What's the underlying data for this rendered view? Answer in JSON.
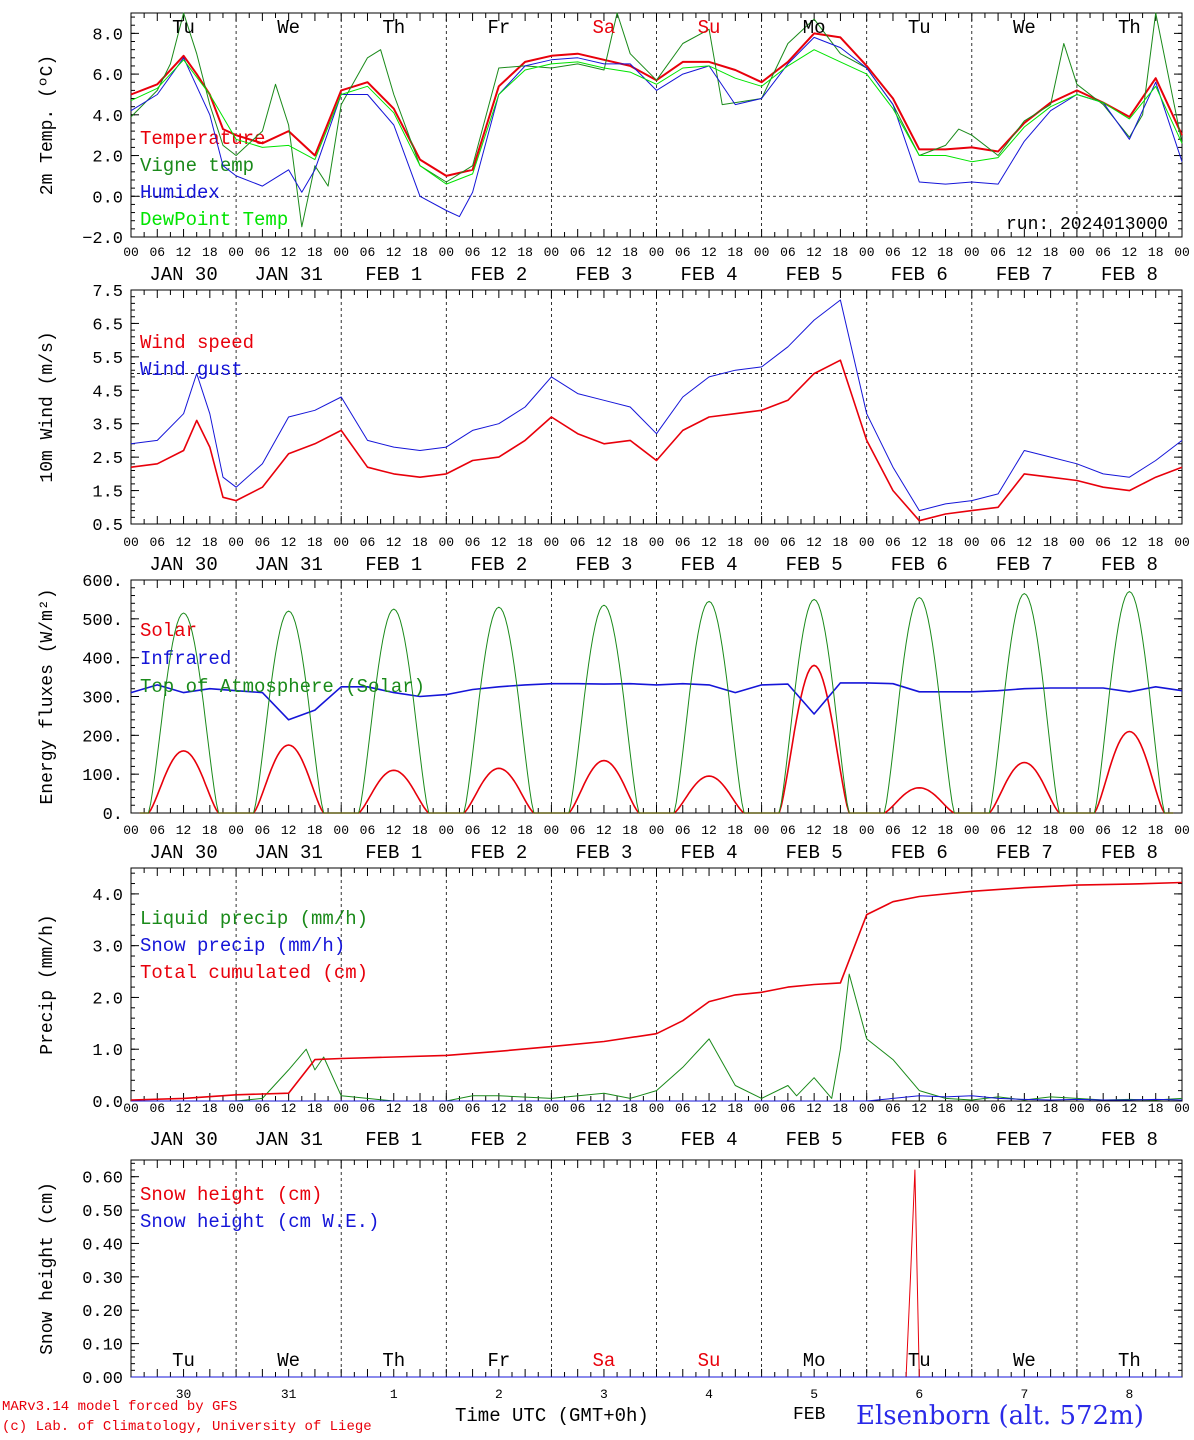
{
  "footer": {
    "credit_line1": "MARv3.14 model forced by GFS",
    "credit_line2": "(c) Lab. of Climatology, University of Liege",
    "x_axis_title": "Time UTC (GMT+0h)",
    "month_label": "FEB",
    "station": "Elsenborn (alt. 572m)"
  },
  "run_label": "run: 2024013000",
  "weekday_labels": [
    "Tu",
    "We",
    "Th",
    "Fr",
    "Sa",
    "Su",
    "Mo",
    "Tu",
    "We",
    "Th"
  ],
  "weekend_color": "#e8000b",
  "weekend_indices": [
    4,
    5
  ],
  "date_labels": [
    "JAN 30",
    "JAN 31",
    "FEB  1",
    "FEB  2",
    "FEB  3",
    "FEB  4",
    "FEB  5",
    "FEB  6",
    "FEB  7",
    "FEB  8"
  ],
  "hour_ticks": [
    "00",
    "06",
    "12",
    "18"
  ],
  "final_hour_tick": "00",
  "bottom_day_numbers": [
    "30",
    "31",
    "1",
    "2",
    "3",
    "4",
    "5",
    "6",
    "7",
    "8"
  ],
  "chart_data": [
    {
      "type": "line",
      "ylabel": "2m Temp. (ºC)",
      "ylim": [
        -2,
        9
      ],
      "yticks": [
        -2,
        0,
        2,
        4,
        6,
        8
      ],
      "ytick_labels": [
        "−2.0",
        "0.0",
        "2.0",
        "4.0",
        "6.0",
        "8.0"
      ],
      "reference_line": 0,
      "x_unit": "hours since JAN 30 00 UTC",
      "xlim": [
        0,
        240
      ],
      "series": [
        {
          "name": "Temperature",
          "color": "#e8000b",
          "width": 2,
          "x": [
            0,
            6,
            12,
            15,
            18,
            21,
            24,
            30,
            36,
            42,
            48,
            54,
            60,
            66,
            72,
            78,
            84,
            90,
            96,
            102,
            108,
            114,
            120,
            126,
            132,
            138,
            144,
            150,
            156,
            162,
            168,
            174,
            180,
            186,
            192,
            198,
            204,
            210,
            216,
            222,
            228,
            234,
            240
          ],
          "y": [
            5.0,
            5.5,
            6.9,
            6.0,
            5.0,
            3.3,
            3.0,
            2.6,
            3.2,
            2.0,
            5.2,
            5.6,
            4.3,
            1.8,
            1.0,
            1.3,
            5.4,
            6.6,
            6.9,
            7.0,
            6.7,
            6.4,
            5.7,
            6.6,
            6.6,
            6.2,
            5.6,
            6.6,
            8.0,
            7.8,
            6.4,
            4.8,
            2.3,
            2.3,
            2.4,
            2.2,
            3.6,
            4.6,
            5.2,
            4.6,
            3.9,
            5.8,
            3.0
          ]
        },
        {
          "name": "Vigne temp",
          "color": "#1a8a1a",
          "width": 1,
          "x": [
            0,
            6,
            9,
            12,
            15,
            18,
            21,
            24,
            30,
            33,
            36,
            39,
            42,
            45,
            48,
            54,
            57,
            60,
            66,
            72,
            78,
            84,
            90,
            96,
            102,
            108,
            111,
            114,
            120,
            126,
            132,
            135,
            138,
            144,
            150,
            156,
            162,
            168,
            174,
            180,
            186,
            189,
            192,
            198,
            204,
            210,
            213,
            216,
            222,
            228,
            231,
            234,
            240
          ],
          "y": [
            3.9,
            5.2,
            6.5,
            9.0,
            7.0,
            4.5,
            2.5,
            2.0,
            3.2,
            5.5,
            3.5,
            -1.5,
            1.5,
            0.5,
            4.5,
            6.8,
            7.2,
            5.0,
            1.5,
            0.7,
            1.5,
            6.3,
            6.4,
            6.3,
            6.5,
            6.2,
            9.0,
            7.0,
            5.7,
            7.5,
            8.2,
            4.5,
            4.6,
            4.8,
            7.5,
            8.7,
            7.0,
            6.3,
            4.5,
            2.0,
            2.5,
            3.3,
            3.0,
            2.0,
            3.7,
            4.5,
            7.5,
            5.5,
            4.5,
            2.9,
            4.0,
            9.0,
            2.6
          ]
        },
        {
          "name": "Humidex",
          "color": "#1515d8",
          "width": 1,
          "x": [
            0,
            6,
            12,
            18,
            21,
            24,
            30,
            36,
            39,
            42,
            48,
            54,
            60,
            66,
            72,
            75,
            78,
            84,
            90,
            96,
            102,
            108,
            114,
            120,
            126,
            132,
            138,
            144,
            150,
            156,
            162,
            168,
            174,
            180,
            186,
            192,
            198,
            204,
            210,
            216,
            222,
            228,
            234,
            240
          ],
          "y": [
            4.2,
            5.0,
            6.8,
            4.0,
            1.5,
            1.0,
            0.5,
            1.3,
            0.2,
            1.3,
            5.0,
            5.0,
            3.5,
            0.0,
            -0.7,
            -1.0,
            0.2,
            5.0,
            6.4,
            6.7,
            6.8,
            6.5,
            6.5,
            5.2,
            6.0,
            6.4,
            4.5,
            4.8,
            6.5,
            7.8,
            7.3,
            6.3,
            4.5,
            0.7,
            0.6,
            0.7,
            0.6,
            2.7,
            4.2,
            5.0,
            4.6,
            2.8,
            5.6,
            1.7
          ]
        },
        {
          "name": "DewPoint Temp",
          "color": "#00e400",
          "width": 1,
          "x": [
            0,
            6,
            12,
            18,
            24,
            30,
            36,
            42,
            48,
            54,
            60,
            66,
            72,
            78,
            84,
            90,
            96,
            102,
            108,
            114,
            120,
            126,
            132,
            138,
            144,
            150,
            156,
            162,
            168,
            174,
            180,
            186,
            192,
            198,
            204,
            210,
            216,
            222,
            228,
            234,
            240
          ],
          "y": [
            4.7,
            5.3,
            6.7,
            5.0,
            2.8,
            2.4,
            2.5,
            1.8,
            5.0,
            5.4,
            4.1,
            1.5,
            0.6,
            1.1,
            5.0,
            6.2,
            6.5,
            6.6,
            6.3,
            6.1,
            5.5,
            6.3,
            6.4,
            5.8,
            5.4,
            6.4,
            7.2,
            6.6,
            6.0,
            4.3,
            2.0,
            2.0,
            1.7,
            1.9,
            3.4,
            4.4,
            5.0,
            4.6,
            3.8,
            5.4,
            2.6
          ]
        }
      ]
    },
    {
      "type": "line",
      "ylabel": "10m Wind (m/s)",
      "ylim": [
        0.5,
        7.5
      ],
      "yticks": [
        0.5,
        1.5,
        2.5,
        3.5,
        4.5,
        5.5,
        6.5,
        7.5
      ],
      "ytick_labels": [
        "0.5",
        "1.5",
        "2.5",
        "3.5",
        "4.5",
        "5.5",
        "6.5",
        "7.5"
      ],
      "reference_line": 5,
      "xlim": [
        0,
        240
      ],
      "series": [
        {
          "name": "Wind speed",
          "color": "#e8000b",
          "width": 1.6,
          "x": [
            0,
            6,
            12,
            15,
            18,
            21,
            24,
            30,
            36,
            42,
            48,
            54,
            60,
            66,
            72,
            78,
            84,
            90,
            96,
            102,
            108,
            114,
            120,
            126,
            132,
            138,
            144,
            150,
            156,
            162,
            168,
            174,
            180,
            186,
            192,
            198,
            204,
            210,
            216,
            222,
            228,
            234,
            240
          ],
          "y": [
            2.2,
            2.3,
            2.7,
            3.6,
            2.8,
            1.3,
            1.2,
            1.6,
            2.6,
            2.9,
            3.3,
            2.2,
            2.0,
            1.9,
            2.0,
            2.4,
            2.5,
            3.0,
            3.7,
            3.2,
            2.9,
            3.0,
            2.4,
            3.3,
            3.7,
            3.8,
            3.9,
            4.2,
            5.0,
            5.4,
            3.0,
            1.5,
            0.6,
            0.8,
            0.9,
            1.0,
            2.0,
            1.9,
            1.8,
            1.6,
            1.5,
            1.9,
            2.2
          ]
        },
        {
          "name": "Wind gust",
          "color": "#1515d8",
          "width": 1,
          "x": [
            0,
            6,
            12,
            15,
            18,
            21,
            24,
            30,
            36,
            42,
            48,
            54,
            60,
            66,
            72,
            78,
            84,
            90,
            96,
            102,
            108,
            114,
            120,
            126,
            132,
            138,
            144,
            150,
            156,
            162,
            168,
            174,
            180,
            186,
            192,
            198,
            204,
            210,
            216,
            222,
            228,
            234,
            240
          ],
          "y": [
            2.9,
            3.0,
            3.8,
            5.0,
            3.8,
            1.9,
            1.6,
            2.3,
            3.7,
            3.9,
            4.3,
            3.0,
            2.8,
            2.7,
            2.8,
            3.3,
            3.5,
            4.0,
            4.9,
            4.4,
            4.2,
            4.0,
            3.2,
            4.3,
            4.9,
            5.1,
            5.2,
            5.8,
            6.6,
            7.2,
            3.8,
            2.2,
            0.9,
            1.1,
            1.2,
            1.4,
            2.7,
            2.5,
            2.3,
            2.0,
            1.9,
            2.4,
            3.0
          ]
        }
      ]
    },
    {
      "type": "line",
      "ylabel": "Energy fluxes (W/m²)",
      "ylim": [
        0,
        600
      ],
      "yticks": [
        0,
        100,
        200,
        300,
        400,
        500,
        600
      ],
      "ytick_labels": [
        "0.",
        "100.",
        "200.",
        "300.",
        "400.",
        "500.",
        "600."
      ],
      "xlim": [
        0,
        240
      ],
      "series": [
        {
          "name": "Solar",
          "color": "#e8000b",
          "width": 1.6,
          "diurnal": {
            "peak_hour": 12,
            "half_width_hours": 8,
            "peaks": [
              160,
              175,
              110,
              115,
              135,
              95,
              380,
              65,
              130,
              210
            ]
          }
        },
        {
          "name": "Infrared",
          "color": "#1515d8",
          "width": 1.6,
          "x": [
            0,
            6,
            12,
            18,
            24,
            30,
            36,
            42,
            48,
            54,
            60,
            66,
            72,
            78,
            84,
            90,
            96,
            102,
            108,
            114,
            120,
            126,
            132,
            138,
            144,
            150,
            156,
            162,
            168,
            174,
            180,
            186,
            192,
            198,
            204,
            210,
            216,
            222,
            228,
            234,
            240
          ],
          "y": [
            310,
            330,
            310,
            320,
            315,
            310,
            240,
            265,
            325,
            325,
            310,
            300,
            305,
            318,
            325,
            330,
            333,
            333,
            332,
            333,
            330,
            333,
            330,
            310,
            330,
            332,
            255,
            335,
            335,
            333,
            312,
            312,
            312,
            315,
            320,
            322,
            322,
            322,
            312,
            325,
            315
          ]
        },
        {
          "name": "Top of Atmosphere (Solar)",
          "color": "#1a8a1a",
          "width": 1,
          "diurnal": {
            "peak_hour": 12,
            "half_width_hours": 8,
            "peaks": [
              515,
              520,
              525,
              530,
              535,
              545,
              550,
              555,
              565,
              570
            ]
          }
        }
      ]
    },
    {
      "type": "line",
      "ylabel": "Precip (mm/h)",
      "ylim": [
        0,
        4.5
      ],
      "yticks": [
        0,
        1,
        2,
        3,
        4
      ],
      "ytick_labels": [
        "0.0",
        "1.0",
        "2.0",
        "3.0",
        "4.0"
      ],
      "xlim": [
        0,
        240
      ],
      "series": [
        {
          "name": "Liquid precip (mm/h)",
          "color": "#1a8a1a",
          "width": 1,
          "x": [
            0,
            24,
            30,
            36,
            40,
            42,
            44,
            48,
            54,
            60,
            66,
            72,
            78,
            84,
            96,
            108,
            114,
            120,
            126,
            132,
            138,
            144,
            150,
            152,
            156,
            160,
            162,
            164,
            168,
            174,
            180,
            186,
            192,
            198,
            204,
            210,
            216,
            222,
            228,
            234,
            240
          ],
          "y": [
            0,
            0,
            0.05,
            0.6,
            1.0,
            0.6,
            0.85,
            0.1,
            0.05,
            0,
            0,
            0,
            0.1,
            0.1,
            0.05,
            0.15,
            0.05,
            0.2,
            0.65,
            1.2,
            0.3,
            0.05,
            0.3,
            0.1,
            0.45,
            0.05,
            1.0,
            2.45,
            1.2,
            0.8,
            0.2,
            0.05,
            0.02,
            0.08,
            0.02,
            0.08,
            0.05,
            0.02,
            0.03,
            0.02,
            0.05
          ]
        },
        {
          "name": "Snow precip (mm/h)",
          "color": "#1515d8",
          "width": 1,
          "x": [
            0,
            168,
            174,
            180,
            186,
            192,
            198,
            204,
            210,
            216,
            222,
            228,
            234,
            240
          ],
          "y": [
            0,
            0,
            0.05,
            0.1,
            0.08,
            0.1,
            0.05,
            0.03,
            0.02,
            0.03,
            0.02,
            0.02,
            0.03,
            0.02
          ]
        },
        {
          "name": "Total cumulated (cm)",
          "color": "#e8000b",
          "width": 1.6,
          "x": [
            0,
            12,
            24,
            36,
            42,
            48,
            60,
            72,
            84,
            96,
            108,
            120,
            126,
            132,
            138,
            144,
            150,
            156,
            162,
            168,
            174,
            180,
            192,
            204,
            216,
            228,
            240
          ],
          "y": [
            0.02,
            0.05,
            0.12,
            0.15,
            0.8,
            0.82,
            0.85,
            0.88,
            0.96,
            1.05,
            1.15,
            1.3,
            1.55,
            1.92,
            2.05,
            2.1,
            2.2,
            2.25,
            2.28,
            3.6,
            3.85,
            3.95,
            4.05,
            4.12,
            4.17,
            4.19,
            4.22
          ]
        }
      ]
    },
    {
      "type": "line",
      "ylabel": "Snow height (cm)",
      "ylim": [
        0,
        0.65
      ],
      "yticks": [
        0,
        0.1,
        0.2,
        0.3,
        0.4,
        0.5,
        0.6
      ],
      "ytick_labels": [
        "0.00",
        "0.10",
        "0.20",
        "0.30",
        "0.40",
        "0.50",
        "0.60"
      ],
      "xlim": [
        0,
        240
      ],
      "series": [
        {
          "name": "Snow height (cm)",
          "color": "#e8000b",
          "width": 1,
          "x": [
            0,
            177,
            178,
            179,
            180,
            240
          ],
          "y": [
            0,
            0,
            0.3,
            0.62,
            0,
            0
          ]
        },
        {
          "name": "Snow height (cm W.E.)",
          "color": "#1515d8",
          "width": 1,
          "x": [
            0,
            240
          ],
          "y": [
            0,
            0
          ]
        }
      ]
    }
  ]
}
